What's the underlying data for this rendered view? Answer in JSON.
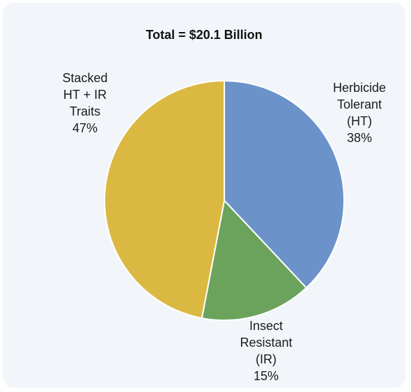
{
  "chart_data": {
    "type": "pie",
    "title": "Total = $20.1 Billion",
    "slices": [
      {
        "name": "Herbicide Tolerant (HT)",
        "label_lines": [
          "Herbicide",
          "Tolerant",
          "(HT)",
          "38%"
        ],
        "value": 38,
        "color": "#6b93c9"
      },
      {
        "name": "Insect Resistant (IR)",
        "label_lines": [
          "Insect",
          "Resistant",
          "(IR)",
          "15%"
        ],
        "value": 15,
        "color": "#6ba35c"
      },
      {
        "name": "Stacked HT + IR Traits",
        "label_lines": [
          "Stacked",
          "HT + IR",
          "Traits",
          "47%"
        ],
        "value": 47,
        "color": "#dbb842"
      }
    ]
  }
}
